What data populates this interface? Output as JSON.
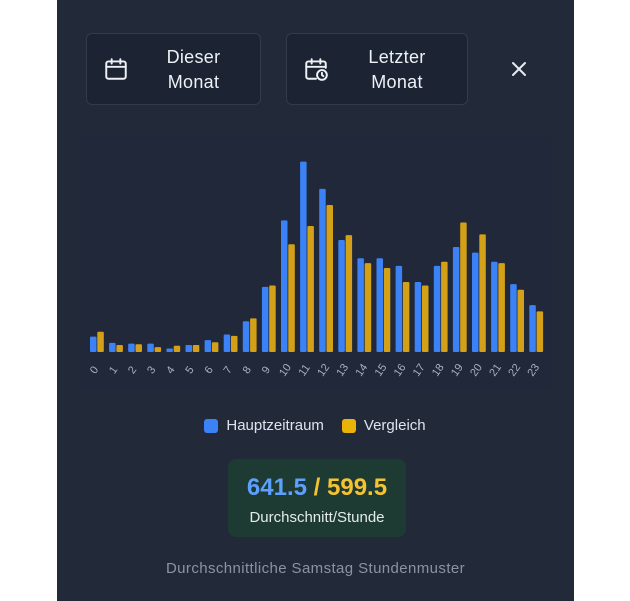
{
  "buttons": {
    "current_month_line1": "Dieser",
    "current_month_line2": "Monat",
    "last_month_line1": "Letzter",
    "last_month_line2": "Monat",
    "current_month_icon": "calendar-icon",
    "last_month_icon": "calendar-clock-icon",
    "close_icon": "close-icon"
  },
  "legend": {
    "primary": "Hauptzeitraum",
    "compare": "Vergleich"
  },
  "stats": {
    "primary_value": "641.5",
    "separator": "/",
    "compare_value": "599.5",
    "label": "Durchschnitt/Stunde"
  },
  "footer": "Durchschnittliche Samstag Stundenmuster",
  "colors": {
    "primary": "#3b82f6",
    "compare": "#d4a017",
    "panel_bg": "#222a3a"
  },
  "chart_data": {
    "type": "bar",
    "categories": [
      "0",
      "1",
      "2",
      "3",
      "4",
      "5",
      "6",
      "7",
      "8",
      "9",
      "10",
      "11",
      "12",
      "13",
      "14",
      "15",
      "16",
      "17",
      "18",
      "19",
      "20",
      "21",
      "22",
      "23"
    ],
    "series": [
      {
        "name": "Hauptzeitraum",
        "values": [
          220,
          130,
          120,
          120,
          50,
          100,
          170,
          250,
          440,
          930,
          1880,
          2720,
          2330,
          1600,
          1340,
          1340,
          1230,
          1000,
          1230,
          1500,
          1420,
          1290,
          970,
          670
        ]
      },
      {
        "name": "Vergleich",
        "values": [
          290,
          100,
          110,
          70,
          90,
          100,
          140,
          230,
          480,
          950,
          1540,
          1800,
          2100,
          1670,
          1270,
          1200,
          1000,
          950,
          1290,
          1850,
          1680,
          1270,
          890,
          580
        ]
      }
    ],
    "ylim": [
      0,
      2800
    ],
    "grid": false,
    "legend": "bottom-center"
  }
}
